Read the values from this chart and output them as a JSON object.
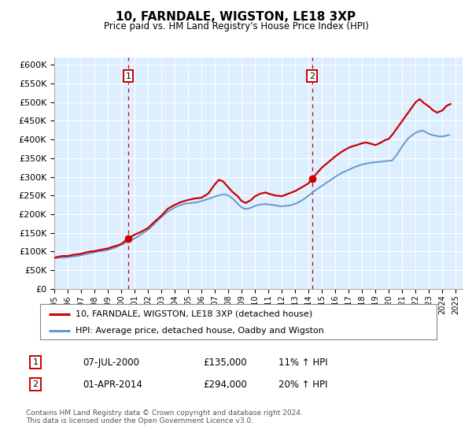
{
  "title": "10, FARNDALE, WIGSTON, LE18 3XP",
  "subtitle": "Price paid vs. HM Land Registry's House Price Index (HPI)",
  "legend_line1": "10, FARNDALE, WIGSTON, LE18 3XP (detached house)",
  "legend_line2": "HPI: Average price, detached house, Oadby and Wigston",
  "annotation1_label": "1",
  "annotation1_date": "07-JUL-2000",
  "annotation1_price": 135000,
  "annotation1_hpi": "11% ↑ HPI",
  "annotation1_year": 2000.52,
  "annotation2_label": "2",
  "annotation2_date": "01-APR-2014",
  "annotation2_price": 294000,
  "annotation2_hpi": "20% ↑ HPI",
  "annotation2_year": 2014.25,
  "price_line_color": "#cc0000",
  "hpi_line_color": "#6699cc",
  "vline_color": "#cc0000",
  "background_color": "#ffffff",
  "plot_bg_color": "#ddeeff",
  "grid_color": "#ffffff",
  "ylim": [
    0,
    620000
  ],
  "xlim_start": 1995.0,
  "xlim_end": 2025.5,
  "yticks": [
    0,
    50000,
    100000,
    150000,
    200000,
    250000,
    300000,
    350000,
    400000,
    450000,
    500000,
    550000,
    600000
  ],
  "ytick_labels": [
    "£0",
    "£50K",
    "£100K",
    "£150K",
    "£200K",
    "£250K",
    "£300K",
    "£350K",
    "£400K",
    "£450K",
    "£500K",
    "£550K",
    "£600K"
  ],
  "footer_text": "Contains HM Land Registry data © Crown copyright and database right 2024.\nThis data is licensed under the Open Government Licence v3.0.",
  "hpi_data": [
    [
      1995.0,
      82000
    ],
    [
      1995.25,
      83000
    ],
    [
      1995.5,
      83500
    ],
    [
      1995.75,
      84000
    ],
    [
      1996.0,
      85000
    ],
    [
      1996.25,
      86000
    ],
    [
      1996.5,
      87000
    ],
    [
      1996.75,
      88000
    ],
    [
      1997.0,
      90000
    ],
    [
      1997.25,
      92000
    ],
    [
      1997.5,
      94000
    ],
    [
      1997.75,
      96000
    ],
    [
      1998.0,
      98000
    ],
    [
      1998.25,
      100000
    ],
    [
      1998.5,
      101000
    ],
    [
      1998.75,
      102000
    ],
    [
      1999.0,
      104000
    ],
    [
      1999.25,
      107000
    ],
    [
      1999.5,
      110000
    ],
    [
      1999.75,
      114000
    ],
    [
      2000.0,
      118000
    ],
    [
      2000.25,
      122000
    ],
    [
      2000.5,
      126000
    ],
    [
      2000.75,
      130000
    ],
    [
      2001.0,
      135000
    ],
    [
      2001.25,
      140000
    ],
    [
      2001.5,
      146000
    ],
    [
      2001.75,
      152000
    ],
    [
      2002.0,
      158000
    ],
    [
      2002.25,
      166000
    ],
    [
      2002.5,
      175000
    ],
    [
      2002.75,
      184000
    ],
    [
      2003.0,
      192000
    ],
    [
      2003.25,
      200000
    ],
    [
      2003.5,
      207000
    ],
    [
      2003.75,
      213000
    ],
    [
      2004.0,
      218000
    ],
    [
      2004.25,
      222000
    ],
    [
      2004.5,
      225000
    ],
    [
      2004.75,
      228000
    ],
    [
      2005.0,
      229000
    ],
    [
      2005.25,
      230000
    ],
    [
      2005.5,
      231000
    ],
    [
      2005.75,
      233000
    ],
    [
      2006.0,
      235000
    ],
    [
      2006.25,
      238000
    ],
    [
      2006.5,
      241000
    ],
    [
      2006.75,
      244000
    ],
    [
      2007.0,
      247000
    ],
    [
      2007.25,
      250000
    ],
    [
      2007.5,
      252000
    ],
    [
      2007.75,
      253000
    ],
    [
      2008.0,
      250000
    ],
    [
      2008.25,
      244000
    ],
    [
      2008.5,
      236000
    ],
    [
      2008.75,
      226000
    ],
    [
      2009.0,
      218000
    ],
    [
      2009.25,
      214000
    ],
    [
      2009.5,
      215000
    ],
    [
      2009.75,
      218000
    ],
    [
      2010.0,
      222000
    ],
    [
      2010.25,
      225000
    ],
    [
      2010.5,
      226000
    ],
    [
      2010.75,
      227000
    ],
    [
      2011.0,
      226000
    ],
    [
      2011.25,
      225000
    ],
    [
      2011.5,
      224000
    ],
    [
      2011.75,
      222000
    ],
    [
      2012.0,
      221000
    ],
    [
      2012.25,
      222000
    ],
    [
      2012.5,
      223000
    ],
    [
      2012.75,
      225000
    ],
    [
      2013.0,
      228000
    ],
    [
      2013.25,
      232000
    ],
    [
      2013.5,
      237000
    ],
    [
      2013.75,
      243000
    ],
    [
      2014.0,
      250000
    ],
    [
      2014.25,
      257000
    ],
    [
      2014.5,
      264000
    ],
    [
      2014.75,
      270000
    ],
    [
      2015.0,
      276000
    ],
    [
      2015.25,
      282000
    ],
    [
      2015.5,
      288000
    ],
    [
      2015.75,
      294000
    ],
    [
      2016.0,
      300000
    ],
    [
      2016.25,
      306000
    ],
    [
      2016.5,
      311000
    ],
    [
      2016.75,
      315000
    ],
    [
      2017.0,
      319000
    ],
    [
      2017.25,
      323000
    ],
    [
      2017.5,
      327000
    ],
    [
      2017.75,
      330000
    ],
    [
      2018.0,
      333000
    ],
    [
      2018.25,
      335000
    ],
    [
      2018.5,
      337000
    ],
    [
      2018.75,
      338000
    ],
    [
      2019.0,
      339000
    ],
    [
      2019.25,
      340000
    ],
    [
      2019.5,
      341000
    ],
    [
      2019.75,
      342000
    ],
    [
      2020.0,
      343000
    ],
    [
      2020.25,
      344000
    ],
    [
      2020.5,
      355000
    ],
    [
      2020.75,
      368000
    ],
    [
      2021.0,
      382000
    ],
    [
      2021.25,
      395000
    ],
    [
      2021.5,
      405000
    ],
    [
      2021.75,
      412000
    ],
    [
      2022.0,
      418000
    ],
    [
      2022.25,
      422000
    ],
    [
      2022.5,
      424000
    ],
    [
      2022.75,
      420000
    ],
    [
      2023.0,
      415000
    ],
    [
      2023.25,
      412000
    ],
    [
      2023.5,
      410000
    ],
    [
      2023.75,
      408000
    ],
    [
      2024.0,
      408000
    ],
    [
      2024.25,
      410000
    ],
    [
      2024.5,
      412000
    ]
  ],
  "price_data": [
    [
      1995.0,
      83000
    ],
    [
      1995.3,
      86000
    ],
    [
      1995.6,
      88000
    ],
    [
      1996.0,
      88000
    ],
    [
      1996.4,
      91000
    ],
    [
      1996.8,
      93000
    ],
    [
      1997.0,
      94000
    ],
    [
      1997.3,
      97000
    ],
    [
      1997.7,
      100000
    ],
    [
      1998.0,
      101000
    ],
    [
      1998.4,
      104000
    ],
    [
      1998.8,
      107000
    ],
    [
      1999.0,
      108000
    ],
    [
      1999.3,
      112000
    ],
    [
      1999.7,
      116000
    ],
    [
      2000.0,
      120000
    ],
    [
      2000.52,
      135000
    ],
    [
      2001.0,
      145000
    ],
    [
      2001.5,
      153000
    ],
    [
      2002.0,
      163000
    ],
    [
      2002.5,
      180000
    ],
    [
      2003.0,
      196000
    ],
    [
      2003.5,
      215000
    ],
    [
      2004.0,
      225000
    ],
    [
      2004.5,
      233000
    ],
    [
      2005.0,
      238000
    ],
    [
      2005.5,
      242000
    ],
    [
      2006.0,
      244000
    ],
    [
      2006.5,
      255000
    ],
    [
      2007.0,
      280000
    ],
    [
      2007.3,
      292000
    ],
    [
      2007.6,
      288000
    ],
    [
      2008.0,
      272000
    ],
    [
      2008.3,
      260000
    ],
    [
      2008.7,
      248000
    ],
    [
      2009.0,
      235000
    ],
    [
      2009.3,
      230000
    ],
    [
      2009.7,
      238000
    ],
    [
      2010.0,
      248000
    ],
    [
      2010.4,
      255000
    ],
    [
      2010.8,
      258000
    ],
    [
      2011.0,
      255000
    ],
    [
      2011.5,
      250000
    ],
    [
      2012.0,
      248000
    ],
    [
      2012.5,
      255000
    ],
    [
      2013.0,
      262000
    ],
    [
      2013.5,
      272000
    ],
    [
      2014.0,
      283000
    ],
    [
      2014.25,
      294000
    ],
    [
      2014.5,
      305000
    ],
    [
      2014.75,
      315000
    ],
    [
      2015.0,
      325000
    ],
    [
      2015.5,
      340000
    ],
    [
      2016.0,
      355000
    ],
    [
      2016.5,
      368000
    ],
    [
      2017.0,
      378000
    ],
    [
      2017.3,
      382000
    ],
    [
      2017.6,
      385000
    ],
    [
      2018.0,
      390000
    ],
    [
      2018.3,
      392000
    ],
    [
      2018.7,
      388000
    ],
    [
      2019.0,
      385000
    ],
    [
      2019.3,
      390000
    ],
    [
      2019.7,
      398000
    ],
    [
      2020.0,
      402000
    ],
    [
      2020.3,
      415000
    ],
    [
      2020.7,
      435000
    ],
    [
      2021.0,
      450000
    ],
    [
      2021.3,
      465000
    ],
    [
      2021.6,
      480000
    ],
    [
      2022.0,
      500000
    ],
    [
      2022.3,
      508000
    ],
    [
      2022.6,
      498000
    ],
    [
      2023.0,
      488000
    ],
    [
      2023.3,
      478000
    ],
    [
      2023.6,
      472000
    ],
    [
      2024.0,
      478000
    ],
    [
      2024.3,
      490000
    ],
    [
      2024.6,
      495000
    ]
  ]
}
